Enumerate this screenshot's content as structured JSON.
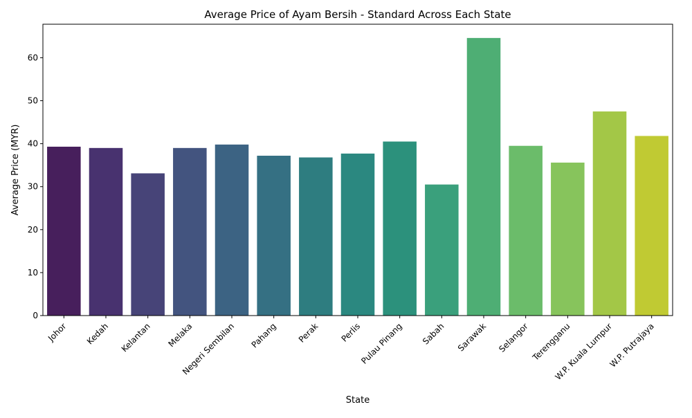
{
  "chart_data": {
    "type": "bar",
    "title": "Average Price of Ayam Bersih - Standard Across Each State",
    "xlabel": "State",
    "ylabel": "Average Price (MYR)",
    "ylim": [
      0,
      67.8
    ],
    "yticks": [
      0,
      10,
      20,
      30,
      40,
      50,
      60
    ],
    "grid": false,
    "legend": "none",
    "categories": [
      "Johor",
      "Kedah",
      "Kelantan",
      "Melaka",
      "Negeri Sembilan",
      "Pahang",
      "Perak",
      "Perlis",
      "Pulau Pinang",
      "Sabah",
      "Sarawak",
      "Selangor",
      "Terengganu",
      "W.P. Kuala Lumpur",
      "W.P. Putrajaya"
    ],
    "values": [
      39.3,
      39.0,
      33.1,
      39.0,
      39.8,
      37.2,
      36.8,
      37.7,
      40.5,
      30.5,
      64.6,
      39.5,
      35.6,
      47.5,
      41.8
    ],
    "colors": [
      "#471f5c",
      "#48326f",
      "#474478",
      "#43547f",
      "#3c6383",
      "#357083",
      "#2e7d80",
      "#2b8880",
      "#2c917c",
      "#3aa07c",
      "#4eae74",
      "#6bbc6a",
      "#87c45c",
      "#a3c747",
      "#c0ca33"
    ]
  }
}
